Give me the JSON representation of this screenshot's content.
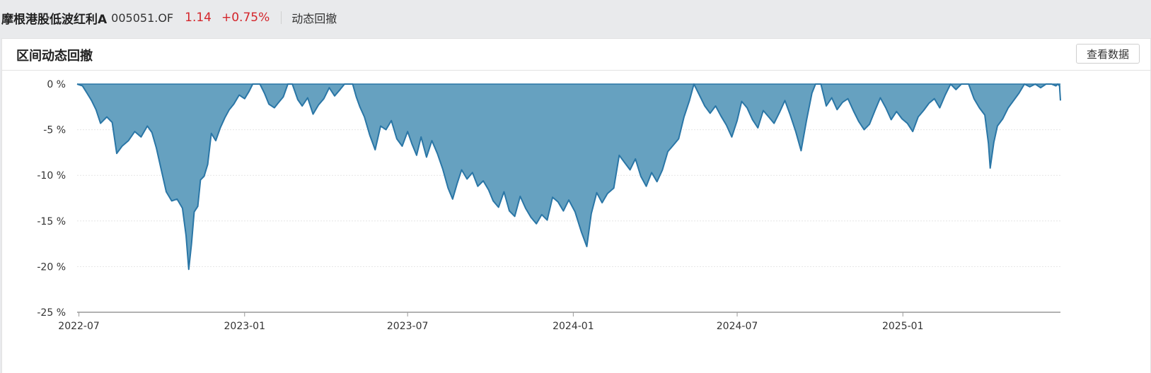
{
  "header": {
    "fund_name": "摩根港股低波红利A",
    "fund_code": "005051.OF",
    "price": "1.14",
    "change": "+0.75%",
    "tab": "动态回撤"
  },
  "card": {
    "title": "区间动态回撤",
    "button": "查看数据"
  },
  "colors": {
    "fill": "#66a1c0",
    "line": "#2a76a6",
    "up": "#d4252b"
  },
  "chart_data": {
    "type": "area",
    "title": "",
    "xlabel": "",
    "ylabel": "",
    "y_unit": "%",
    "ylim": [
      -25,
      0
    ],
    "y_ticks": [
      0,
      -5,
      -10,
      -15,
      -20,
      -25
    ],
    "y_tick_labels": [
      "0 %",
      "-5 %",
      "-10 %",
      "-15 %",
      "-20 %",
      "-25 %"
    ],
    "x_range": [
      "2022-06-29",
      "2025-06-25"
    ],
    "x_ticks": [
      "2022-07-01",
      "2023-01-01",
      "2023-07-01",
      "2024-01-01",
      "2024-07-01",
      "2025-01-01"
    ],
    "x_tick_labels": [
      "2022-07",
      "2023-01",
      "2023-07",
      "2024-01",
      "2024-07",
      "2025-01"
    ],
    "grid": true,
    "series": [
      {
        "points": [
          [
            "2022-06-29",
            0
          ],
          [
            "2022-07-05",
            -0.2
          ],
          [
            "2022-07-10",
            -1.0
          ],
          [
            "2022-07-15",
            -1.8
          ],
          [
            "2022-07-20",
            -2.8
          ],
          [
            "2022-07-25",
            -4.3
          ],
          [
            "2022-08-01",
            -3.6
          ],
          [
            "2022-08-07",
            -4.2
          ],
          [
            "2022-08-12",
            -7.6
          ],
          [
            "2022-08-18",
            -6.8
          ],
          [
            "2022-08-25",
            -6.2
          ],
          [
            "2022-09-01",
            -5.2
          ],
          [
            "2022-09-08",
            -5.8
          ],
          [
            "2022-09-15",
            -4.6
          ],
          [
            "2022-09-20",
            -5.3
          ],
          [
            "2022-09-25",
            -7.0
          ],
          [
            "2022-09-30",
            -9.2
          ],
          [
            "2022-10-06",
            -11.8
          ],
          [
            "2022-10-12",
            -12.8
          ],
          [
            "2022-10-18",
            -12.6
          ],
          [
            "2022-10-24",
            -13.6
          ],
          [
            "2022-10-28",
            -16.6
          ],
          [
            "2022-10-31",
            -20.3
          ],
          [
            "2022-11-03",
            -17.5
          ],
          [
            "2022-11-06",
            -14.0
          ],
          [
            "2022-11-10",
            -13.4
          ],
          [
            "2022-11-13",
            -10.5
          ],
          [
            "2022-11-17",
            -10.1
          ],
          [
            "2022-11-21",
            -8.8
          ],
          [
            "2022-11-25",
            -5.4
          ],
          [
            "2022-11-30",
            -6.2
          ],
          [
            "2022-12-05",
            -4.8
          ],
          [
            "2022-12-10",
            -3.7
          ],
          [
            "2022-12-15",
            -2.8
          ],
          [
            "2022-12-20",
            -2.2
          ],
          [
            "2022-12-26",
            -1.2
          ],
          [
            "2023-01-01",
            -1.6
          ],
          [
            "2023-01-06",
            -0.8
          ],
          [
            "2023-01-10",
            0
          ],
          [
            "2023-01-18",
            0
          ],
          [
            "2023-01-23",
            -1.0
          ],
          [
            "2023-01-28",
            -2.2
          ],
          [
            "2023-02-03",
            -2.6
          ],
          [
            "2023-02-08",
            -2.0
          ],
          [
            "2023-02-13",
            -1.4
          ],
          [
            "2023-02-18",
            0
          ],
          [
            "2023-02-23",
            0
          ],
          [
            "2023-03-01",
            -1.7
          ],
          [
            "2023-03-06",
            -2.4
          ],
          [
            "2023-03-12",
            -1.5
          ],
          [
            "2023-03-18",
            -3.3
          ],
          [
            "2023-03-24",
            -2.3
          ],
          [
            "2023-03-30",
            -1.6
          ],
          [
            "2023-04-05",
            -0.4
          ],
          [
            "2023-04-11",
            -1.3
          ],
          [
            "2023-04-17",
            -0.6
          ],
          [
            "2023-04-22",
            0
          ],
          [
            "2023-05-01",
            0
          ],
          [
            "2023-05-05",
            -1.4
          ],
          [
            "2023-05-09",
            -2.5
          ],
          [
            "2023-05-14",
            -3.6
          ],
          [
            "2023-05-20",
            -5.6
          ],
          [
            "2023-05-26",
            -7.2
          ],
          [
            "2023-06-01",
            -4.6
          ],
          [
            "2023-06-07",
            -5.0
          ],
          [
            "2023-06-13",
            -4.0
          ],
          [
            "2023-06-19",
            -6.0
          ],
          [
            "2023-06-25",
            -6.8
          ],
          [
            "2023-07-01",
            -5.2
          ],
          [
            "2023-07-06",
            -6.6
          ],
          [
            "2023-07-11",
            -7.8
          ],
          [
            "2023-07-16",
            -5.8
          ],
          [
            "2023-07-22",
            -8.0
          ],
          [
            "2023-07-28",
            -6.2
          ],
          [
            "2023-08-03",
            -7.6
          ],
          [
            "2023-08-09",
            -9.3
          ],
          [
            "2023-08-15",
            -11.4
          ],
          [
            "2023-08-20",
            -12.6
          ],
          [
            "2023-08-25",
            -10.9
          ],
          [
            "2023-08-30",
            -9.4
          ],
          [
            "2023-09-05",
            -10.4
          ],
          [
            "2023-09-11",
            -9.7
          ],
          [
            "2023-09-17",
            -11.2
          ],
          [
            "2023-09-23",
            -10.6
          ],
          [
            "2023-09-29",
            -11.6
          ],
          [
            "2023-10-04",
            -12.8
          ],
          [
            "2023-10-10",
            -13.5
          ],
          [
            "2023-10-16",
            -11.8
          ],
          [
            "2023-10-22",
            -13.9
          ],
          [
            "2023-10-28",
            -14.5
          ],
          [
            "2023-11-03",
            -12.3
          ],
          [
            "2023-11-09",
            -13.6
          ],
          [
            "2023-11-15",
            -14.6
          ],
          [
            "2023-11-21",
            -15.3
          ],
          [
            "2023-11-27",
            -14.3
          ],
          [
            "2023-12-03",
            -14.9
          ],
          [
            "2023-12-09",
            -12.4
          ],
          [
            "2023-12-15",
            -12.9
          ],
          [
            "2023-12-21",
            -13.9
          ],
          [
            "2023-12-27",
            -12.7
          ],
          [
            "2024-01-03",
            -14.0
          ],
          [
            "2024-01-10",
            -16.2
          ],
          [
            "2024-01-16",
            -17.8
          ],
          [
            "2024-01-21",
            -14.2
          ],
          [
            "2024-01-27",
            -11.9
          ],
          [
            "2024-02-02",
            -13.0
          ],
          [
            "2024-02-08",
            -12.0
          ],
          [
            "2024-02-15",
            -11.4
          ],
          [
            "2024-02-21",
            -7.8
          ],
          [
            "2024-02-27",
            -8.6
          ],
          [
            "2024-03-04",
            -9.4
          ],
          [
            "2024-03-10",
            -8.2
          ],
          [
            "2024-03-16",
            -10.1
          ],
          [
            "2024-03-22",
            -11.2
          ],
          [
            "2024-03-28",
            -9.7
          ],
          [
            "2024-04-03",
            -10.7
          ],
          [
            "2024-04-09",
            -9.4
          ],
          [
            "2024-04-15",
            -7.4
          ],
          [
            "2024-04-21",
            -6.7
          ],
          [
            "2024-04-27",
            -6.0
          ],
          [
            "2024-05-03",
            -3.6
          ],
          [
            "2024-05-09",
            -1.8
          ],
          [
            "2024-05-14",
            0
          ],
          [
            "2024-05-20",
            -1.2
          ],
          [
            "2024-05-26",
            -2.4
          ],
          [
            "2024-06-01",
            -3.2
          ],
          [
            "2024-06-07",
            -2.4
          ],
          [
            "2024-06-13",
            -3.5
          ],
          [
            "2024-06-19",
            -4.5
          ],
          [
            "2024-06-25",
            -5.8
          ],
          [
            "2024-07-01",
            -4.0
          ],
          [
            "2024-07-06",
            -1.9
          ],
          [
            "2024-07-12",
            -2.6
          ],
          [
            "2024-07-18",
            -3.9
          ],
          [
            "2024-07-24",
            -4.8
          ],
          [
            "2024-07-30",
            -2.9
          ],
          [
            "2024-08-05",
            -3.6
          ],
          [
            "2024-08-11",
            -4.3
          ],
          [
            "2024-08-17",
            -3.1
          ],
          [
            "2024-08-23",
            -1.8
          ],
          [
            "2024-08-29",
            -3.4
          ],
          [
            "2024-09-04",
            -5.2
          ],
          [
            "2024-09-10",
            -7.3
          ],
          [
            "2024-09-16",
            -4.0
          ],
          [
            "2024-09-22",
            -1.0
          ],
          [
            "2024-09-26",
            0
          ],
          [
            "2024-10-02",
            0
          ],
          [
            "2024-10-08",
            -2.4
          ],
          [
            "2024-10-14",
            -1.5
          ],
          [
            "2024-10-20",
            -2.8
          ],
          [
            "2024-10-26",
            -2.0
          ],
          [
            "2024-11-01",
            -1.6
          ],
          [
            "2024-11-07",
            -2.9
          ],
          [
            "2024-11-13",
            -4.1
          ],
          [
            "2024-11-19",
            -5.0
          ],
          [
            "2024-11-25",
            -4.4
          ],
          [
            "2024-12-01",
            -2.9
          ],
          [
            "2024-12-07",
            -1.5
          ],
          [
            "2024-12-13",
            -2.6
          ],
          [
            "2024-12-19",
            -3.9
          ],
          [
            "2024-12-25",
            -3.0
          ],
          [
            "2024-12-31",
            -3.8
          ],
          [
            "2025-01-06",
            -4.3
          ],
          [
            "2025-01-12",
            -5.2
          ],
          [
            "2025-01-18",
            -3.6
          ],
          [
            "2025-01-24",
            -2.9
          ],
          [
            "2025-01-30",
            -2.1
          ],
          [
            "2025-02-05",
            -1.6
          ],
          [
            "2025-02-11",
            -2.6
          ],
          [
            "2025-02-17",
            -1.2
          ],
          [
            "2025-02-23",
            0
          ],
          [
            "2025-03-01",
            -0.6
          ],
          [
            "2025-03-07",
            0
          ],
          [
            "2025-03-15",
            0
          ],
          [
            "2025-03-21",
            -1.6
          ],
          [
            "2025-03-27",
            -2.6
          ],
          [
            "2025-04-02",
            -3.4
          ],
          [
            "2025-04-06",
            -6.5
          ],
          [
            "2025-04-08",
            -9.2
          ],
          [
            "2025-04-12",
            -6.4
          ],
          [
            "2025-04-16",
            -4.6
          ],
          [
            "2025-04-22",
            -3.8
          ],
          [
            "2025-04-28",
            -2.6
          ],
          [
            "2025-05-04",
            -1.8
          ],
          [
            "2025-05-10",
            -1.0
          ],
          [
            "2025-05-16",
            0
          ],
          [
            "2025-05-22",
            -0.3
          ],
          [
            "2025-05-28",
            0
          ],
          [
            "2025-06-03",
            -0.4
          ],
          [
            "2025-06-09",
            0
          ],
          [
            "2025-06-15",
            0
          ],
          [
            "2025-06-20",
            -0.2
          ],
          [
            "2025-06-22",
            0
          ],
          [
            "2025-06-24",
            -0.2
          ],
          [
            "2025-06-25",
            -1.8
          ]
        ]
      }
    ]
  }
}
